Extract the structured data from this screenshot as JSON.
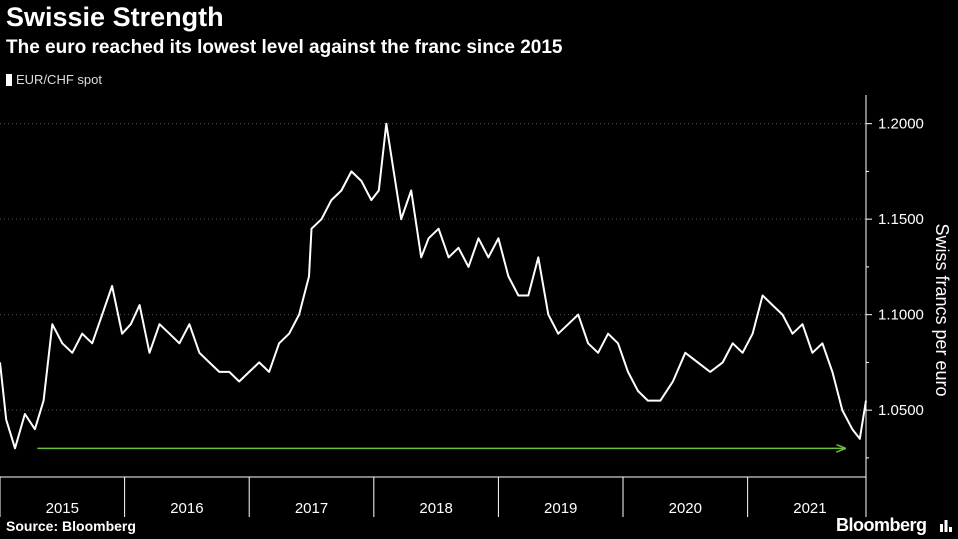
{
  "header": {
    "title": "Swissie Strength",
    "subtitle": "The euro reached its lowest level against the franc since 2015"
  },
  "footer": {
    "source": "Source: Bloomberg",
    "brand": "Bloomberg"
  },
  "colors": {
    "background": "#000000",
    "line": "#ffffff",
    "arrow": "#6bbf3b",
    "grid": "#555555"
  },
  "chart_data": {
    "type": "line",
    "legend": [
      "EUR/CHF spot"
    ],
    "legend_position": "top-left",
    "ylabel": "Swiss francs per euro",
    "y_axis_side": "right",
    "ylim": [
      1.015,
      1.215
    ],
    "yticks": [
      1.05,
      1.1,
      1.15,
      1.2
    ],
    "ytick_labels": [
      "1.0500",
      "1.1000",
      "1.1500",
      "1.2000"
    ],
    "xlim": [
      2015.0,
      2021.95
    ],
    "xtick_labels": [
      "2015",
      "2016",
      "2017",
      "2018",
      "2019",
      "2020",
      "2021"
    ],
    "grid": "horizontal dotted",
    "annotation": "green arrow at 1.0300 from early 2015 to end of 2021",
    "series": [
      {
        "name": "EUR/CHF spot",
        "x": [
          2015.0,
          2015.05,
          2015.12,
          2015.2,
          2015.28,
          2015.35,
          2015.42,
          2015.5,
          2015.58,
          2015.66,
          2015.74,
          2015.82,
          2015.9,
          2015.98,
          2016.05,
          2016.12,
          2016.2,
          2016.28,
          2016.36,
          2016.44,
          2016.52,
          2016.6,
          2016.68,
          2016.76,
          2016.84,
          2016.92,
          2017.0,
          2017.08,
          2017.16,
          2017.24,
          2017.32,
          2017.4,
          2017.48,
          2017.5,
          2017.58,
          2017.66,
          2017.74,
          2017.82,
          2017.9,
          2017.98,
          2018.04,
          2018.1,
          2018.16,
          2018.22,
          2018.3,
          2018.38,
          2018.44,
          2018.52,
          2018.6,
          2018.68,
          2018.76,
          2018.84,
          2018.92,
          2019.0,
          2019.08,
          2019.16,
          2019.24,
          2019.32,
          2019.4,
          2019.48,
          2019.56,
          2019.64,
          2019.72,
          2019.8,
          2019.88,
          2019.96,
          2020.04,
          2020.12,
          2020.2,
          2020.3,
          2020.4,
          2020.5,
          2020.6,
          2020.7,
          2020.8,
          2020.88,
          2020.96,
          2021.04,
          2021.12,
          2021.2,
          2021.28,
          2021.36,
          2021.44,
          2021.52,
          2021.6,
          2021.68,
          2021.76,
          2021.84,
          2021.9,
          2021.95
        ],
        "y": [
          1.075,
          1.045,
          1.03,
          1.048,
          1.04,
          1.055,
          1.095,
          1.085,
          1.08,
          1.09,
          1.085,
          1.1,
          1.115,
          1.09,
          1.095,
          1.105,
          1.08,
          1.095,
          1.09,
          1.085,
          1.095,
          1.08,
          1.075,
          1.07,
          1.07,
          1.065,
          1.07,
          1.075,
          1.07,
          1.085,
          1.09,
          1.1,
          1.12,
          1.145,
          1.15,
          1.16,
          1.165,
          1.175,
          1.17,
          1.16,
          1.165,
          1.2,
          1.175,
          1.15,
          1.165,
          1.13,
          1.14,
          1.145,
          1.13,
          1.135,
          1.125,
          1.14,
          1.13,
          1.14,
          1.12,
          1.11,
          1.11,
          1.13,
          1.1,
          1.09,
          1.095,
          1.1,
          1.085,
          1.08,
          1.09,
          1.085,
          1.07,
          1.06,
          1.055,
          1.055,
          1.065,
          1.08,
          1.075,
          1.07,
          1.075,
          1.085,
          1.08,
          1.09,
          1.11,
          1.105,
          1.1,
          1.09,
          1.095,
          1.08,
          1.085,
          1.07,
          1.05,
          1.04,
          1.035,
          1.055
        ]
      }
    ]
  }
}
